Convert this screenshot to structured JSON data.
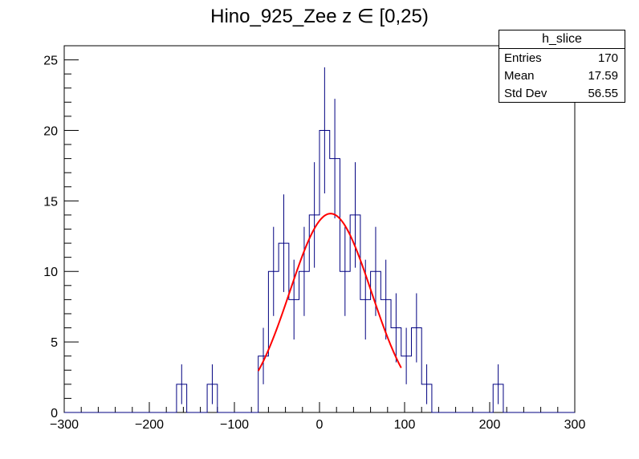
{
  "chart_data": {
    "type": "bar",
    "title": "Hino_925_Zee z  ∈ [0,25)",
    "xlabel": "",
    "ylabel": "",
    "xlim": [
      -300,
      300
    ],
    "ylim": [
      0,
      26
    ],
    "bin_width": 12,
    "x_ticks": [
      "−300",
      "−200",
      "−100",
      "0",
      "100",
      "200",
      "300"
    ],
    "x_tick_values": [
      -300,
      -200,
      -100,
      0,
      100,
      200,
      300
    ],
    "y_ticks": [
      "0",
      "5",
      "10",
      "15",
      "20",
      "25"
    ],
    "y_tick_values": [
      0,
      5,
      10,
      15,
      20,
      25
    ],
    "series": [
      {
        "name": "h_slice",
        "bin_centers": [
          -162,
          -126,
          -66,
          -54,
          -42,
          -30,
          -18,
          -6,
          6,
          18,
          30,
          42,
          54,
          66,
          78,
          90,
          102,
          114,
          126,
          210
        ],
        "values": [
          2,
          2,
          4,
          10,
          12,
          8,
          10,
          14,
          20,
          18,
          10,
          14,
          8,
          10,
          8,
          6,
          4,
          6,
          2,
          2
        ],
        "errors": [
          1.41,
          1.41,
          2.0,
          3.16,
          3.46,
          2.83,
          3.16,
          3.74,
          4.47,
          4.24,
          3.16,
          3.74,
          2.83,
          3.16,
          2.83,
          2.45,
          2.0,
          2.45,
          1.41,
          1.41
        ]
      }
    ],
    "fit": {
      "type": "gaussian",
      "amplitude": 14.1,
      "mean": 13,
      "sigma": 48,
      "range": [
        -72,
        96
      ]
    },
    "stats_box": {
      "title": "h_slice",
      "rows": [
        {
          "label": "Entries",
          "value": "170"
        },
        {
          "label": "Mean",
          "value": "17.59"
        },
        {
          "label": "Std Dev",
          "value": "56.55"
        }
      ]
    },
    "colors": {
      "histogram": "#000080",
      "fit": "#ff0000",
      "axis": "#000000"
    }
  }
}
